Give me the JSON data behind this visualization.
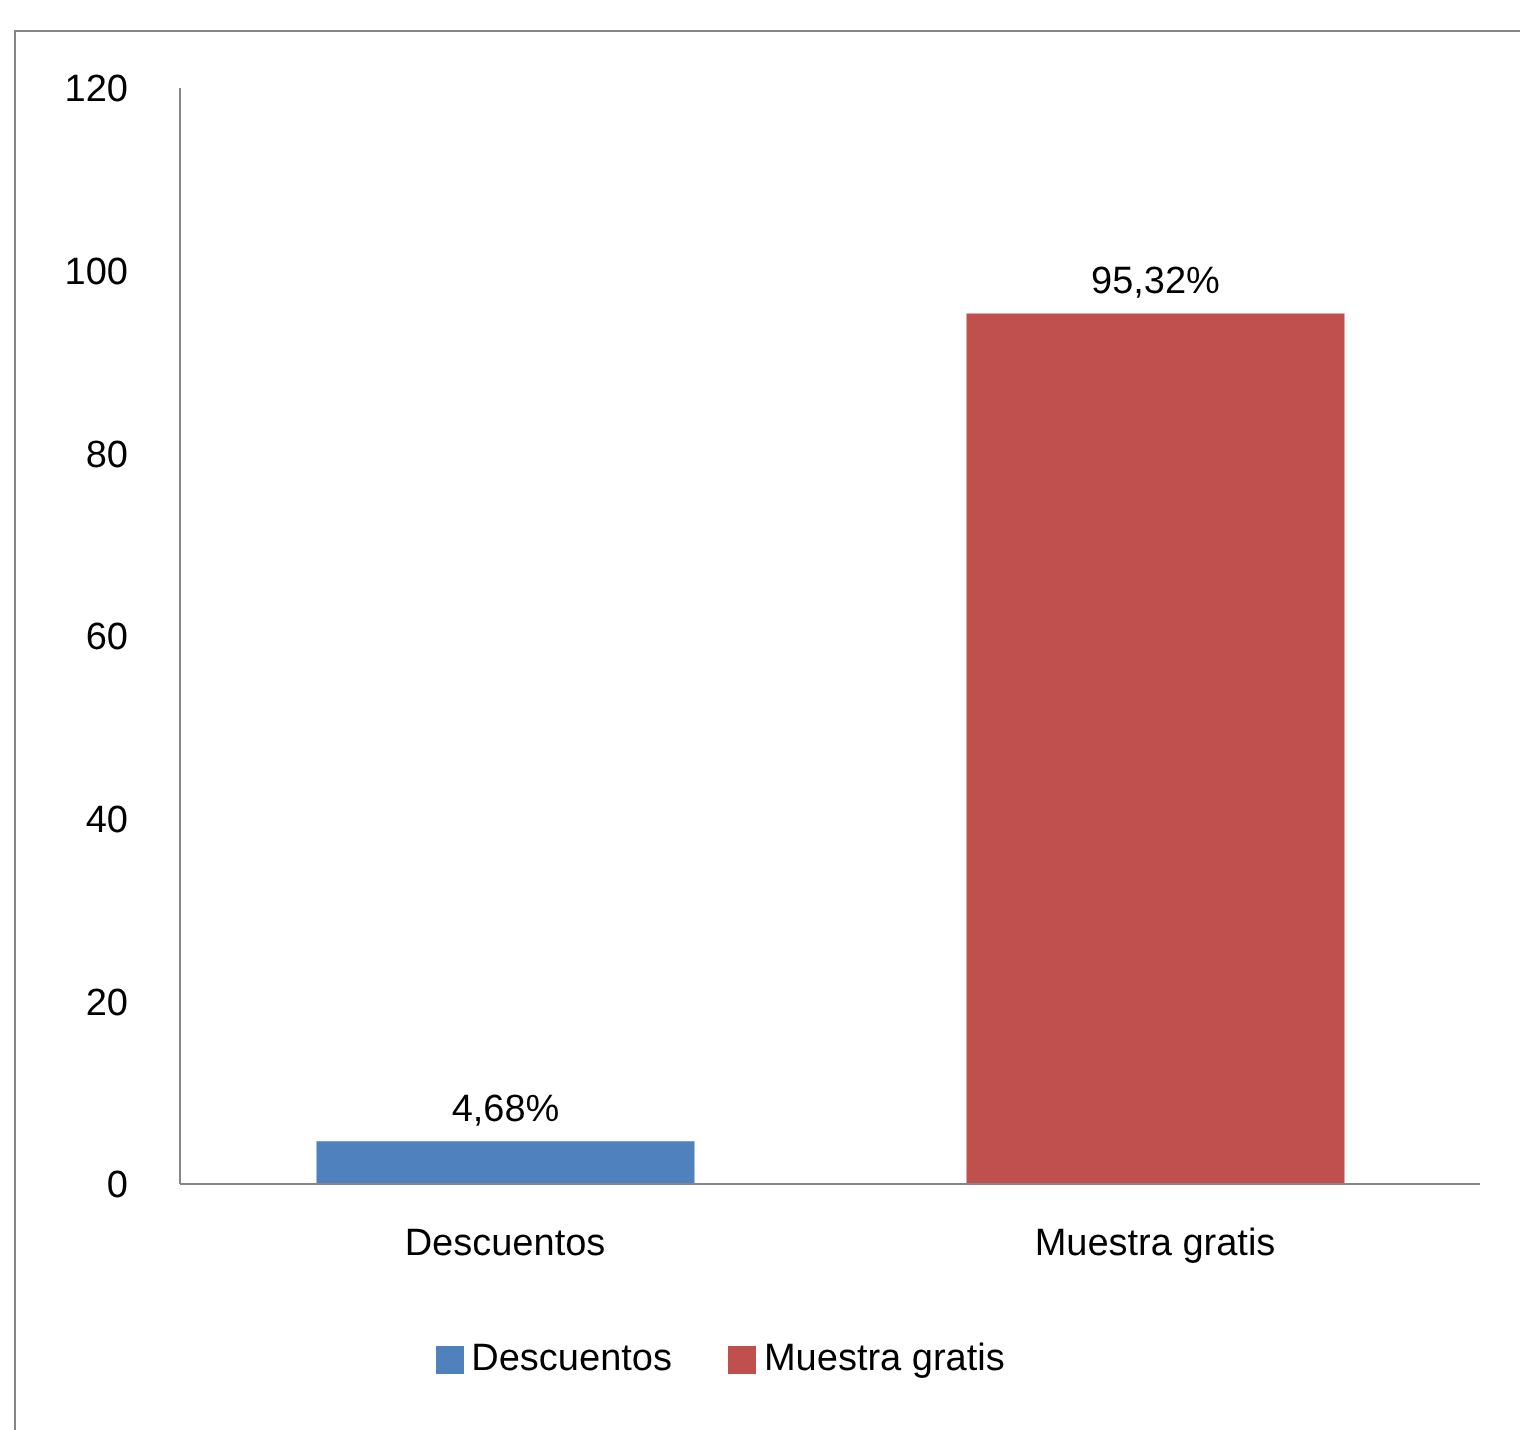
{
  "chart_data": {
    "type": "bar",
    "categories": [
      "Descuentos",
      "Muestra gratis"
    ],
    "series": [
      {
        "name": "Descuentos",
        "color": "#4f81bd",
        "values": [
          4.68,
          null
        ],
        "value_labels": [
          "4,68%",
          null
        ]
      },
      {
        "name": "Muestra gratis",
        "color": "#c0504d",
        "values": [
          null,
          95.32
        ],
        "value_labels": [
          null,
          "95,32%"
        ]
      }
    ],
    "stacked": true,
    "ylim": [
      0,
      120
    ],
    "yticks": [
      0,
      20,
      40,
      60,
      80,
      100,
      120
    ],
    "legend": "bottom"
  }
}
